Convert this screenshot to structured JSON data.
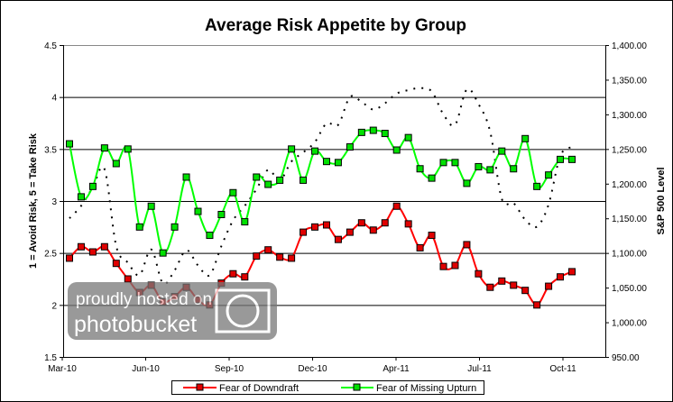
{
  "chart_data": {
    "type": "line",
    "title": "Average Risk Appetite by Group",
    "ylabel": "1 = Avoid Risk, 5 = Take Risk",
    "y2label": "S&P 500 Level",
    "xlabel": "",
    "x_ticks": [
      "Mar-10",
      "Jun-10",
      "Sep-10",
      "Dec-10",
      "Apr-11",
      "Jul-11",
      "Oct-11"
    ],
    "ylim": [
      1.5,
      4.5
    ],
    "y_ticks": [
      "1.5",
      "2",
      "2.5",
      "3",
      "3.5",
      "4",
      "4.5"
    ],
    "y2lim": [
      950,
      1400
    ],
    "y2_ticks": [
      "950.00",
      "1,000.00",
      "1,050.00",
      "1,100.00",
      "1,150.00",
      "1,200.00",
      "1,250.00",
      "1,300.00",
      "1,350.00",
      "1,400.00"
    ],
    "grid": "horizontal major gridlines",
    "legend_position": "bottom",
    "series": [
      {
        "name": "Fear of Downdraft",
        "axis": "left",
        "color": "#ff0000",
        "marker_color": "#e00000",
        "values": [
          2.45,
          2.56,
          2.51,
          2.56,
          2.4,
          2.25,
          2.12,
          2.19,
          2.03,
          2.08,
          2.17,
          2.05,
          2.0,
          2.21,
          2.3,
          2.27,
          2.47,
          2.53,
          2.46,
          2.45,
          2.7,
          2.75,
          2.77,
          2.63,
          2.7,
          2.79,
          2.72,
          2.79,
          2.95,
          2.78,
          2.55,
          2.67,
          2.37,
          2.38,
          2.58,
          2.3,
          2.17,
          2.23,
          2.19,
          2.14,
          2.0,
          2.18,
          2.27,
          2.32
        ]
      },
      {
        "name": "Fear of Missing Upturn",
        "axis": "left",
        "color": "#00ff00",
        "marker_color": "#00e000",
        "values": [
          3.55,
          3.04,
          3.14,
          3.51,
          3.36,
          3.5,
          2.75,
          2.95,
          2.5,
          2.75,
          3.23,
          2.9,
          2.67,
          2.87,
          3.08,
          2.8,
          3.23,
          3.16,
          3.2,
          3.5,
          3.2,
          3.48,
          3.38,
          3.37,
          3.52,
          3.66,
          3.68,
          3.65,
          3.49,
          3.61,
          3.31,
          3.22,
          3.37,
          3.37,
          3.17,
          3.33,
          3.3,
          3.48,
          3.31,
          3.6,
          3.14,
          3.25,
          3.4,
          3.4
        ]
      },
      {
        "axis": "right",
        "color": "#000000",
        "style": "dotted",
        "values": [
          1150,
          1168,
          1195,
          1221,
          1110,
          1086,
          1068,
          1105,
          1056,
          1075,
          1104,
          1082,
          1068,
          1110,
          1147,
          1168,
          1192,
          1220,
          1205,
          1232,
          1245,
          1260,
          1287,
          1285,
          1325,
          1318,
          1307,
          1316,
          1330,
          1335,
          1338,
          1333,
          1300,
          1285,
          1336,
          1315,
          1275,
          1178,
          1172,
          1148,
          1138,
          1170,
          1240,
          1253
        ]
      }
    ]
  },
  "watermark": {
    "line1": "proudly hosted on",
    "line2": "photobucket"
  }
}
